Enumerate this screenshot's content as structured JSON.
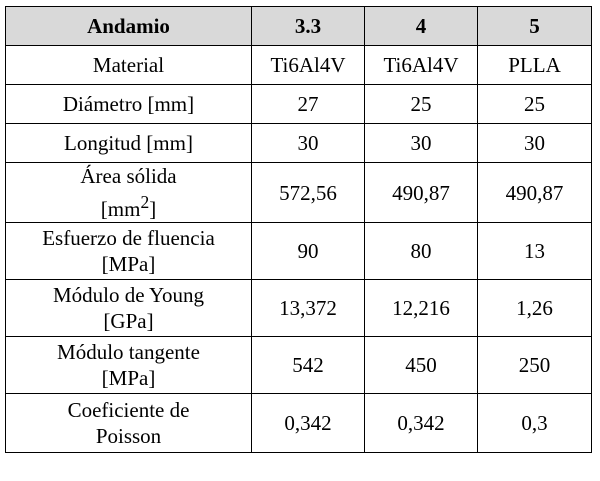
{
  "table": {
    "header": {
      "label": "Andamio",
      "columns": [
        "3.3",
        "4",
        "5"
      ]
    },
    "rows": [
      {
        "label_lines": [
          "Material"
        ],
        "values": [
          "Ti6Al4V",
          "Ti6Al4V",
          "PLLA"
        ]
      },
      {
        "label_lines": [
          "Diámetro [mm]"
        ],
        "values": [
          "27",
          "25",
          "25"
        ]
      },
      {
        "label_lines": [
          "Longitud [mm]"
        ],
        "values": [
          "30",
          "30",
          "30"
        ]
      },
      {
        "label_lines": [
          "Área sólida",
          "[mm",
          "2",
          "]"
        ],
        "values": [
          "572,56",
          "490,87",
          "490,87"
        ]
      },
      {
        "label_lines": [
          "Esfuerzo de fluencia",
          "[MPa]"
        ],
        "values": [
          "90",
          "80",
          "13"
        ]
      },
      {
        "label_lines": [
          "Módulo de Young",
          "[GPa]"
        ],
        "values": [
          "13,372",
          "12,216",
          "1,26"
        ]
      },
      {
        "label_lines": [
          "Módulo tangente",
          "[MPa]"
        ],
        "values": [
          "542",
          "450",
          "250"
        ]
      },
      {
        "label_lines": [
          "Coeficiente de",
          "Poisson"
        ],
        "values": [
          "0,342",
          "0,342",
          "0,3"
        ]
      }
    ]
  }
}
